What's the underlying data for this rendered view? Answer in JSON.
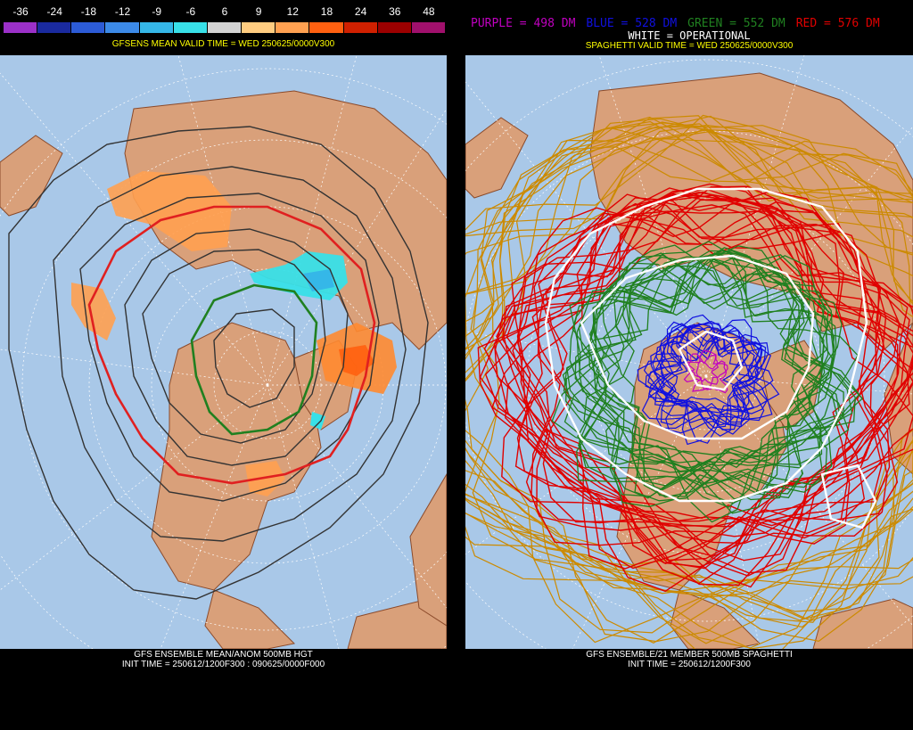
{
  "left": {
    "colorbar": {
      "labels": [
        "-36",
        "-24",
        "-18",
        "-12",
        "-9",
        "-6",
        "6",
        "9",
        "12",
        "18",
        "24",
        "36",
        "48"
      ],
      "colors": [
        "#9b30c8",
        "#1a2a9e",
        "#2c5bd6",
        "#3c8ae8",
        "#35b7e8",
        "#38e0e8",
        "#d3d3d3",
        "#ffcc80",
        "#ffa050",
        "#ff6010",
        "#d02000",
        "#9c0000",
        "#a0106c"
      ]
    },
    "valid_time": "GFSENS MEAN VALID TIME = WED 250625/0000V300",
    "footer_line1": "GFS ENSEMBLE MEAN/ANOM 500MB HGT",
    "footer_line2": "INIT TIME = 250612/1200F300 : 090625/0000F000"
  },
  "right": {
    "legend": [
      {
        "text": "PURPLE = 498 DM",
        "color": "#c000c0"
      },
      {
        "text": "BLUE = 528 DM",
        "color": "#1010e0"
      },
      {
        "text": "GREEN = 552 DM",
        "color": "#208020"
      },
      {
        "text": "RED = 576 DM",
        "color": "#e00000"
      }
    ],
    "operational": "WHITE = OPERATIONAL",
    "valid_time": "SPAGHETTI VALID TIME = WED 250625/0000V300",
    "footer_line1": "GFS ENSEMBLE/21 MEMBER 500MB SPAGHETTI",
    "footer_line2": "INIT TIME = 250612/1200F300"
  },
  "map_colors": {
    "ocean": "#a9c8e8",
    "land": "#d9a07a",
    "border": "#8b4a2a",
    "grid": "#ffffff"
  }
}
